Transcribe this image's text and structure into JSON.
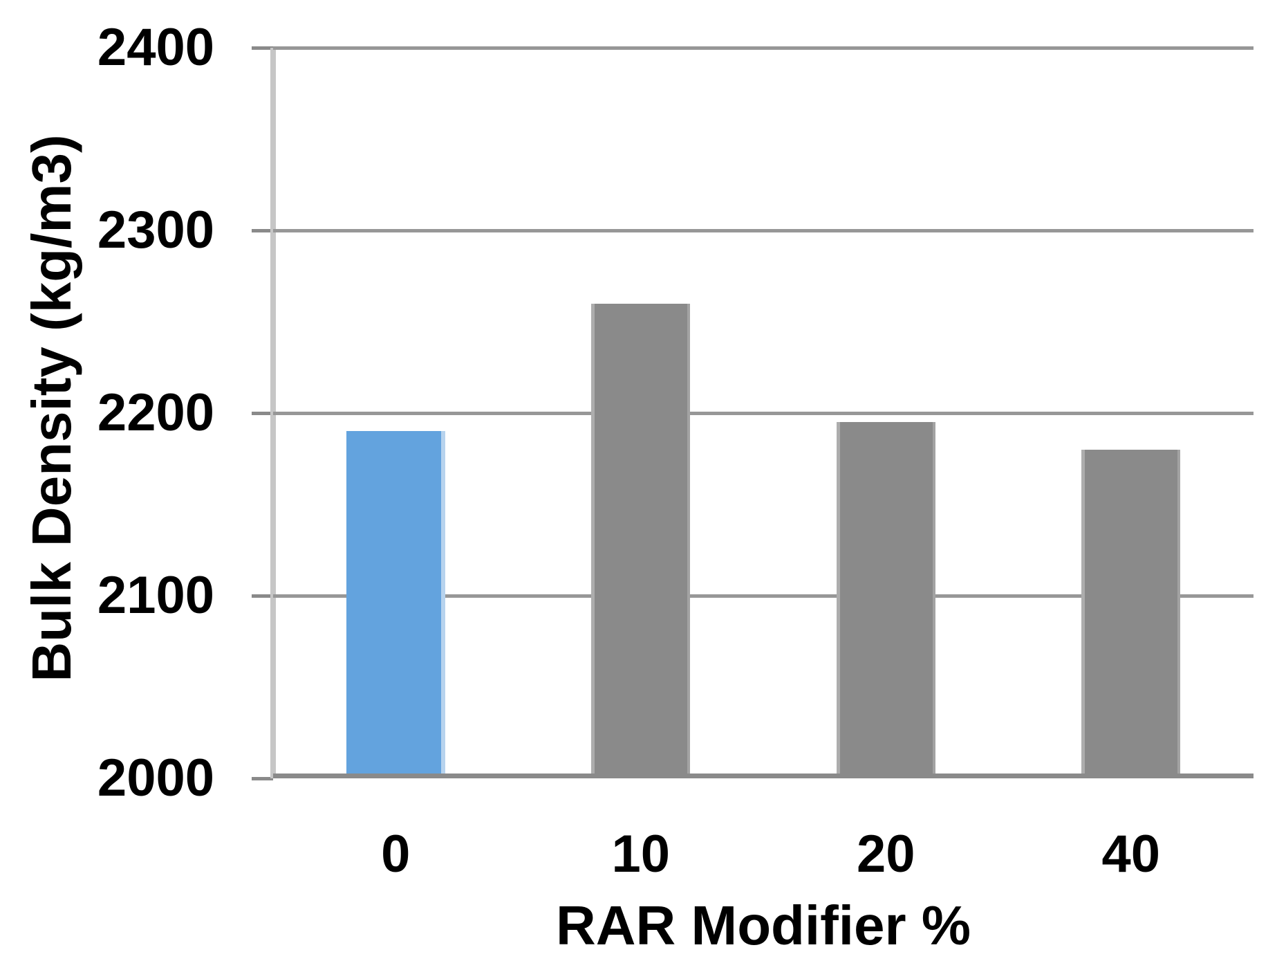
{
  "chart_data": {
    "type": "bar",
    "title": "",
    "xlabel": "RAR Modifier %",
    "ylabel": "Bulk Density (kg/m3)",
    "categories": [
      "0",
      "10",
      "20",
      "40"
    ],
    "values": [
      2190,
      2260,
      2195,
      2180
    ],
    "series": [
      {
        "name": "Bulk Density",
        "values": [
          2190,
          2260,
          2195,
          2180
        ]
      }
    ],
    "ylim": [
      2000,
      2400
    ],
    "yticks": [
      2000,
      2100,
      2200,
      2300,
      2400
    ],
    "ytick_interval": 100,
    "grid": "horizontal-on",
    "legend": "none",
    "bar_colors": [
      "#63a3de",
      "#8a8a8a",
      "#8a8a8a",
      "#8a8a8a"
    ],
    "colors": {
      "accent_bar": "#63a3de",
      "default_bar": "#8a8a8a",
      "gridline": "#979797",
      "x_axis_line": "#8a8a8a",
      "y_axis_line": "#c6c6c6",
      "text": "#000000",
      "background": "#ffffff"
    }
  }
}
